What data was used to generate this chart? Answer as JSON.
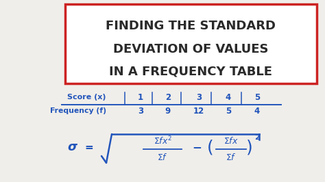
{
  "bg_color": "#f0eeea",
  "white": "#ffffff",
  "title_lines": [
    "FINDING THE STANDARD",
    "DEVIATION OF VALUES",
    "IN A FREQUENCY TABLE"
  ],
  "title_color": "#2a2a2a",
  "title_box_edge": "#cc2222",
  "table_color": "#2255bb",
  "formula_color": "#2255bb",
  "table_header_label": "Score (x)",
  "table_header_vals": [
    "1",
    "2",
    "3",
    "4",
    "5"
  ],
  "table_freq_label": "Frequency (f)",
  "table_freq_vals": [
    "3",
    "9",
    "12",
    "5",
    "4"
  ]
}
